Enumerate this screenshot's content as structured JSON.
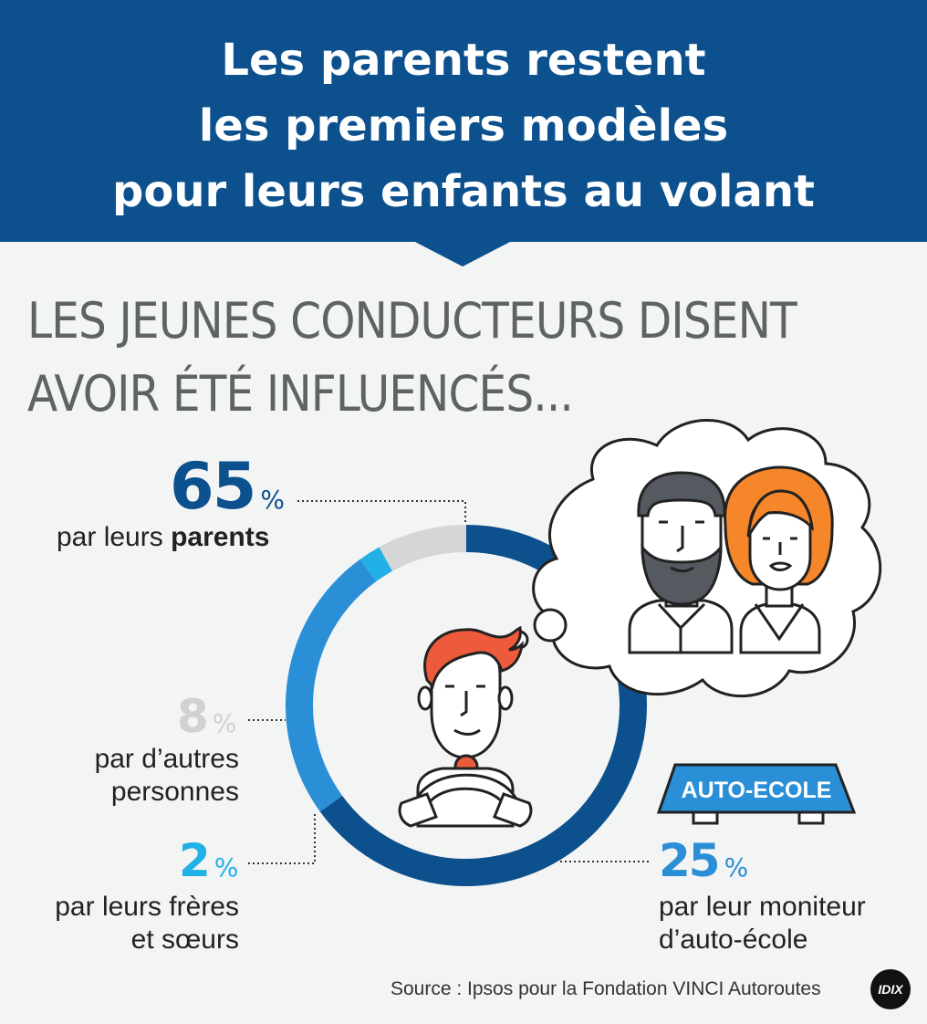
{
  "header": {
    "title_lines": [
      "Les parents restent",
      "les premiers modèles",
      "pour leurs enfants au volant"
    ]
  },
  "subtitle_lines": [
    "LES JEUNES CONDUCTEURS DISENT",
    "AVOIR ÉTÉ INFLUENCÉS..."
  ],
  "stats": {
    "parents": {
      "value": "65",
      "unit": "%",
      "label_prefix": "par leurs ",
      "label_bold": "parents"
    },
    "autres": {
      "value": "8",
      "unit": "%",
      "label_lines": [
        "par d’autres",
        "personnes"
      ]
    },
    "freres": {
      "value": "2",
      "unit": "%",
      "label_lines": [
        "par leurs frères",
        "et sœurs"
      ]
    },
    "moniteur": {
      "value": "25",
      "unit": "%",
      "label_lines": [
        "par leur moniteur",
        "d’auto-école"
      ]
    }
  },
  "sign": {
    "text": "AUTO-ECOLE"
  },
  "source": "Source : Ipsos pour la Fondation VINCI Autoroutes",
  "logo": "IDIX",
  "colors": {
    "banner": "#0c508e",
    "parents": "#0c508e",
    "moniteur": "#2a8fd6",
    "freres": "#22b0e6",
    "autres": "#d4d6d8",
    "hair_young": "#ee5a3c",
    "hair_mother": "#f5862a"
  },
  "chart_data": {
    "type": "pie",
    "variant": "donut",
    "title": "",
    "categories": [
      "par leurs parents",
      "par leur moniteur d’auto-école",
      "par leurs frères et sœurs",
      "par d’autres personnes"
    ],
    "values": [
      65,
      25,
      2,
      8
    ],
    "unit": "%"
  }
}
